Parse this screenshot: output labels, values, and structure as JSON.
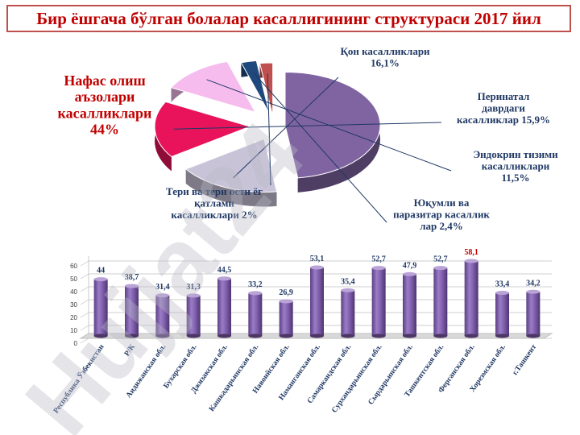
{
  "title": "Бир ёшгача бўлган болалар касаллигининг структураси 2017 йил",
  "watermark": "Hujjat24",
  "colors": {
    "title": "#c00000",
    "bar": "#7f5aa8",
    "bar_label": "#1f3864",
    "bar_label_highlight": "#c00000"
  },
  "chart_data": [
    {
      "type": "pie",
      "title": "",
      "slices": [
        {
          "label": "Нафас олиш аъзолари касалликлари 44%",
          "value": 44,
          "color": "#8064a2"
        },
        {
          "label": "Қон касалликлари 16,1%",
          "value": 16.1,
          "color": "#c9c3d8"
        },
        {
          "label": "Перинатал даврдаги касалликлар 15,9%",
          "value": 15.9,
          "color": "#e8135a"
        },
        {
          "label": "Эндокрин тизими касалликлари 11,5%",
          "value": 11.5,
          "color": "#f6bcee"
        },
        {
          "label": "Юқумли ва паразитар касаллик лар 2,4%",
          "value": 2.4,
          "color": "#1f497d"
        },
        {
          "label": "Тери ва тери ости ёғ қатлами касалликлари 2%",
          "value": 2,
          "color": "#c0504d"
        }
      ]
    },
    {
      "type": "bar",
      "title": "",
      "xlabel": "",
      "ylabel": "",
      "ylim": [
        0,
        60
      ],
      "yticks": [
        "0",
        "10",
        "20",
        "30",
        "40",
        "50",
        "60"
      ],
      "categories": [
        "Республика Ўзбекистан",
        "Р/К",
        "Андижанская обл.",
        "Бухарская обл.",
        "Джизакская обл.",
        "Кашкадарьинская обл.",
        "Навоийская обл.",
        "Наманганская обл.",
        "Самаркандская обл.",
        "Сурхандарьинская обл.",
        "Сырдарьинская обл.",
        "Ташкентская обл.",
        "Ферганская обл.",
        "Хорезмская обл.",
        "г.Ташкент"
      ],
      "values": [
        44,
        38.7,
        31.4,
        31.3,
        44.5,
        33.2,
        26.9,
        53.1,
        35.4,
        52.7,
        47.9,
        52.7,
        58.1,
        33.4,
        34.2
      ],
      "value_labels": [
        "44",
        "38,7",
        "31,4",
        "31,3",
        "44,5",
        "33,2",
        "26,9",
        "53,1",
        "35,4",
        "52,7",
        "47,9",
        "52,7",
        "58,1",
        "33,4",
        "34,2"
      ],
      "highlight_index": 12,
      "grid": true
    }
  ]
}
